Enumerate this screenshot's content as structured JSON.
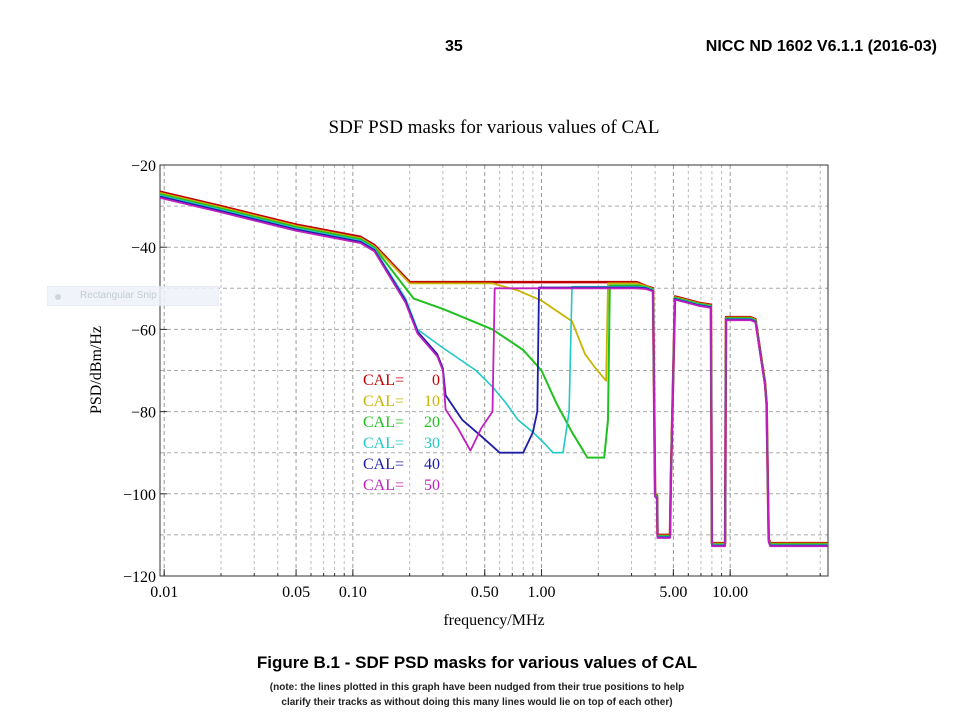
{
  "header": {
    "page_number": "35",
    "doc_id": "NICC ND 1602 V6.1.1 (2016-03)"
  },
  "ghost_tooltip": {
    "label": "Rectangular Snip"
  },
  "caption": {
    "title": "Figure B.1 - SDF PSD masks for various values of CAL",
    "note_line1": "(note: the lines plotted in this graph have been nudged from their true positions to help",
    "note_line2": "clarify their tracks as without doing this many lines would lie on top of each other)"
  },
  "chart_data": {
    "type": "line",
    "title": "SDF PSD masks for various values of CAL",
    "xlabel": "frequency/MHz",
    "ylabel": "PSD/dBm/Hz",
    "x_scale": "log",
    "xlim": [
      0.0095,
      33
    ],
    "ylim": [
      -120,
      -20
    ],
    "x_ticks": [
      {
        "value": 0.01,
        "label": "0.01"
      },
      {
        "value": 0.05,
        "label": "0.05"
      },
      {
        "value": 0.1,
        "label": "0.10"
      },
      {
        "value": 0.5,
        "label": "0.50"
      },
      {
        "value": 1,
        "label": "1.00"
      },
      {
        "value": 5,
        "label": "5.00"
      },
      {
        "value": 10,
        "label": "10.00"
      }
    ],
    "y_ticks": [
      {
        "value": -20,
        "label": "−20"
      },
      {
        "value": -40,
        "label": "−40"
      },
      {
        "value": -60,
        "label": "−60"
      },
      {
        "value": -80,
        "label": "−80"
      },
      {
        "value": -100,
        "label": "−100"
      },
      {
        "value": -120,
        "label": "−120"
      }
    ],
    "grid": true,
    "legend": [
      {
        "label": "CAL=",
        "value": "0",
        "color": "#c00000"
      },
      {
        "label": "CAL=",
        "value": "10",
        "color": "#c8b400"
      },
      {
        "label": "CAL=",
        "value": "20",
        "color": "#20c020"
      },
      {
        "label": "CAL=",
        "value": "30",
        "color": "#20c8c8"
      },
      {
        "label": "CAL=",
        "value": "40",
        "color": "#1c1ca8"
      },
      {
        "label": "CAL=",
        "value": "50",
        "color": "#c020c0"
      }
    ],
    "common_tail": [
      [
        3.6,
        -49.5
      ],
      [
        3.9,
        -50
      ],
      [
        4.0,
        -100
      ],
      [
        4.1,
        -100.5
      ],
      [
        4.12,
        -110
      ],
      [
        4.8,
        -110
      ],
      [
        4.85,
        -96
      ],
      [
        5.1,
        -52
      ],
      [
        6.8,
        -53.5
      ],
      [
        7.9,
        -54
      ],
      [
        8.0,
        -112
      ],
      [
        8.1,
        -112
      ],
      [
        9.4,
        -112
      ],
      [
        9.5,
        -57
      ],
      [
        12.8,
        -57
      ],
      [
        13.6,
        -57.5
      ],
      [
        15.3,
        -73
      ],
      [
        15.6,
        -78
      ],
      [
        16.0,
        -111
      ],
      [
        16.3,
        -112
      ],
      [
        33,
        -112
      ]
    ],
    "series": [
      {
        "color": "#c00000",
        "lw": 2.5,
        "values": [
          [
            0.0095,
            -26.5
          ],
          [
            0.02,
            -30
          ],
          [
            0.05,
            -34.5
          ],
          [
            0.11,
            -37.5
          ],
          [
            0.13,
            -39.5
          ],
          [
            0.2,
            -48.5
          ],
          [
            3.2,
            -48.5
          ],
          [
            3.6,
            -49.5
          ]
        ]
      },
      {
        "color": "#c8b400",
        "lw": 1.8,
        "values": [
          [
            0.0095,
            -26.8
          ],
          [
            0.02,
            -30.3
          ],
          [
            0.05,
            -34.8
          ],
          [
            0.11,
            -37.8
          ],
          [
            0.13,
            -39.8
          ],
          [
            0.2,
            -48.8
          ],
          [
            0.55,
            -48.8
          ],
          [
            0.75,
            -50.5
          ],
          [
            1.0,
            -53
          ],
          [
            1.45,
            -58
          ],
          [
            1.7,
            -66
          ],
          [
            1.9,
            -69
          ],
          [
            2.2,
            -72.5
          ],
          [
            2.25,
            -48.8
          ],
          [
            3.2,
            -48.8
          ],
          [
            3.6,
            -49.5
          ]
        ]
      },
      {
        "color": "#20c020",
        "lw": 2.0,
        "values": [
          [
            0.0095,
            -27.1
          ],
          [
            0.02,
            -30.6
          ],
          [
            0.05,
            -35.1
          ],
          [
            0.11,
            -38.1
          ],
          [
            0.13,
            -40.1
          ],
          [
            0.18,
            -48.5
          ],
          [
            0.21,
            -52.5
          ],
          [
            0.3,
            -55
          ],
          [
            0.55,
            -60
          ],
          [
            0.8,
            -65
          ],
          [
            1.0,
            -70
          ],
          [
            1.2,
            -78
          ],
          [
            1.45,
            -85
          ],
          [
            1.75,
            -91.2
          ],
          [
            2.15,
            -91.2
          ],
          [
            2.25,
            -82
          ],
          [
            2.3,
            -49.3
          ],
          [
            3.2,
            -49.3
          ],
          [
            3.6,
            -49.7
          ]
        ]
      },
      {
        "color": "#20c8c8",
        "lw": 1.6,
        "values": [
          [
            0.0095,
            -27.4
          ],
          [
            0.02,
            -30.9
          ],
          [
            0.05,
            -35.4
          ],
          [
            0.11,
            -38.4
          ],
          [
            0.13,
            -40.4
          ],
          [
            0.19,
            -52.5
          ],
          [
            0.22,
            -60
          ],
          [
            0.3,
            -64.5
          ],
          [
            0.45,
            -70
          ],
          [
            0.55,
            -74
          ],
          [
            0.65,
            -78
          ],
          [
            0.75,
            -82
          ],
          [
            0.9,
            -85
          ],
          [
            1.05,
            -88
          ],
          [
            1.15,
            -90
          ],
          [
            1.3,
            -90
          ],
          [
            1.4,
            -80
          ],
          [
            1.45,
            -49.6
          ],
          [
            3.2,
            -49.6
          ],
          [
            3.6,
            -49.8
          ]
        ]
      },
      {
        "color": "#1c1ca8",
        "lw": 1.8,
        "values": [
          [
            0.0095,
            -27.7
          ],
          [
            0.02,
            -31.2
          ],
          [
            0.05,
            -35.7
          ],
          [
            0.11,
            -38.7
          ],
          [
            0.13,
            -40.7
          ],
          [
            0.19,
            -53
          ],
          [
            0.22,
            -60.5
          ],
          [
            0.28,
            -66
          ],
          [
            0.3,
            -69.5
          ],
          [
            0.31,
            -76
          ],
          [
            0.38,
            -82
          ],
          [
            0.48,
            -86
          ],
          [
            0.6,
            -90
          ],
          [
            0.8,
            -90
          ],
          [
            0.9,
            -85
          ],
          [
            0.95,
            -80
          ],
          [
            0.97,
            -49.8
          ],
          [
            3.2,
            -49.8
          ],
          [
            3.6,
            -50
          ]
        ]
      },
      {
        "color": "#c020c0",
        "lw": 1.8,
        "values": [
          [
            0.0095,
            -28.0
          ],
          [
            0.02,
            -31.5
          ],
          [
            0.05,
            -36.0
          ],
          [
            0.11,
            -39.0
          ],
          [
            0.13,
            -41.0
          ],
          [
            0.19,
            -53.5
          ],
          [
            0.22,
            -61
          ],
          [
            0.28,
            -66.5
          ],
          [
            0.3,
            -70
          ],
          [
            0.31,
            -79.5
          ],
          [
            0.36,
            -84
          ],
          [
            0.42,
            -89.5
          ],
          [
            0.48,
            -84
          ],
          [
            0.55,
            -80
          ],
          [
            0.565,
            -50
          ],
          [
            3.2,
            -50
          ],
          [
            3.6,
            -50.2
          ]
        ]
      }
    ]
  }
}
